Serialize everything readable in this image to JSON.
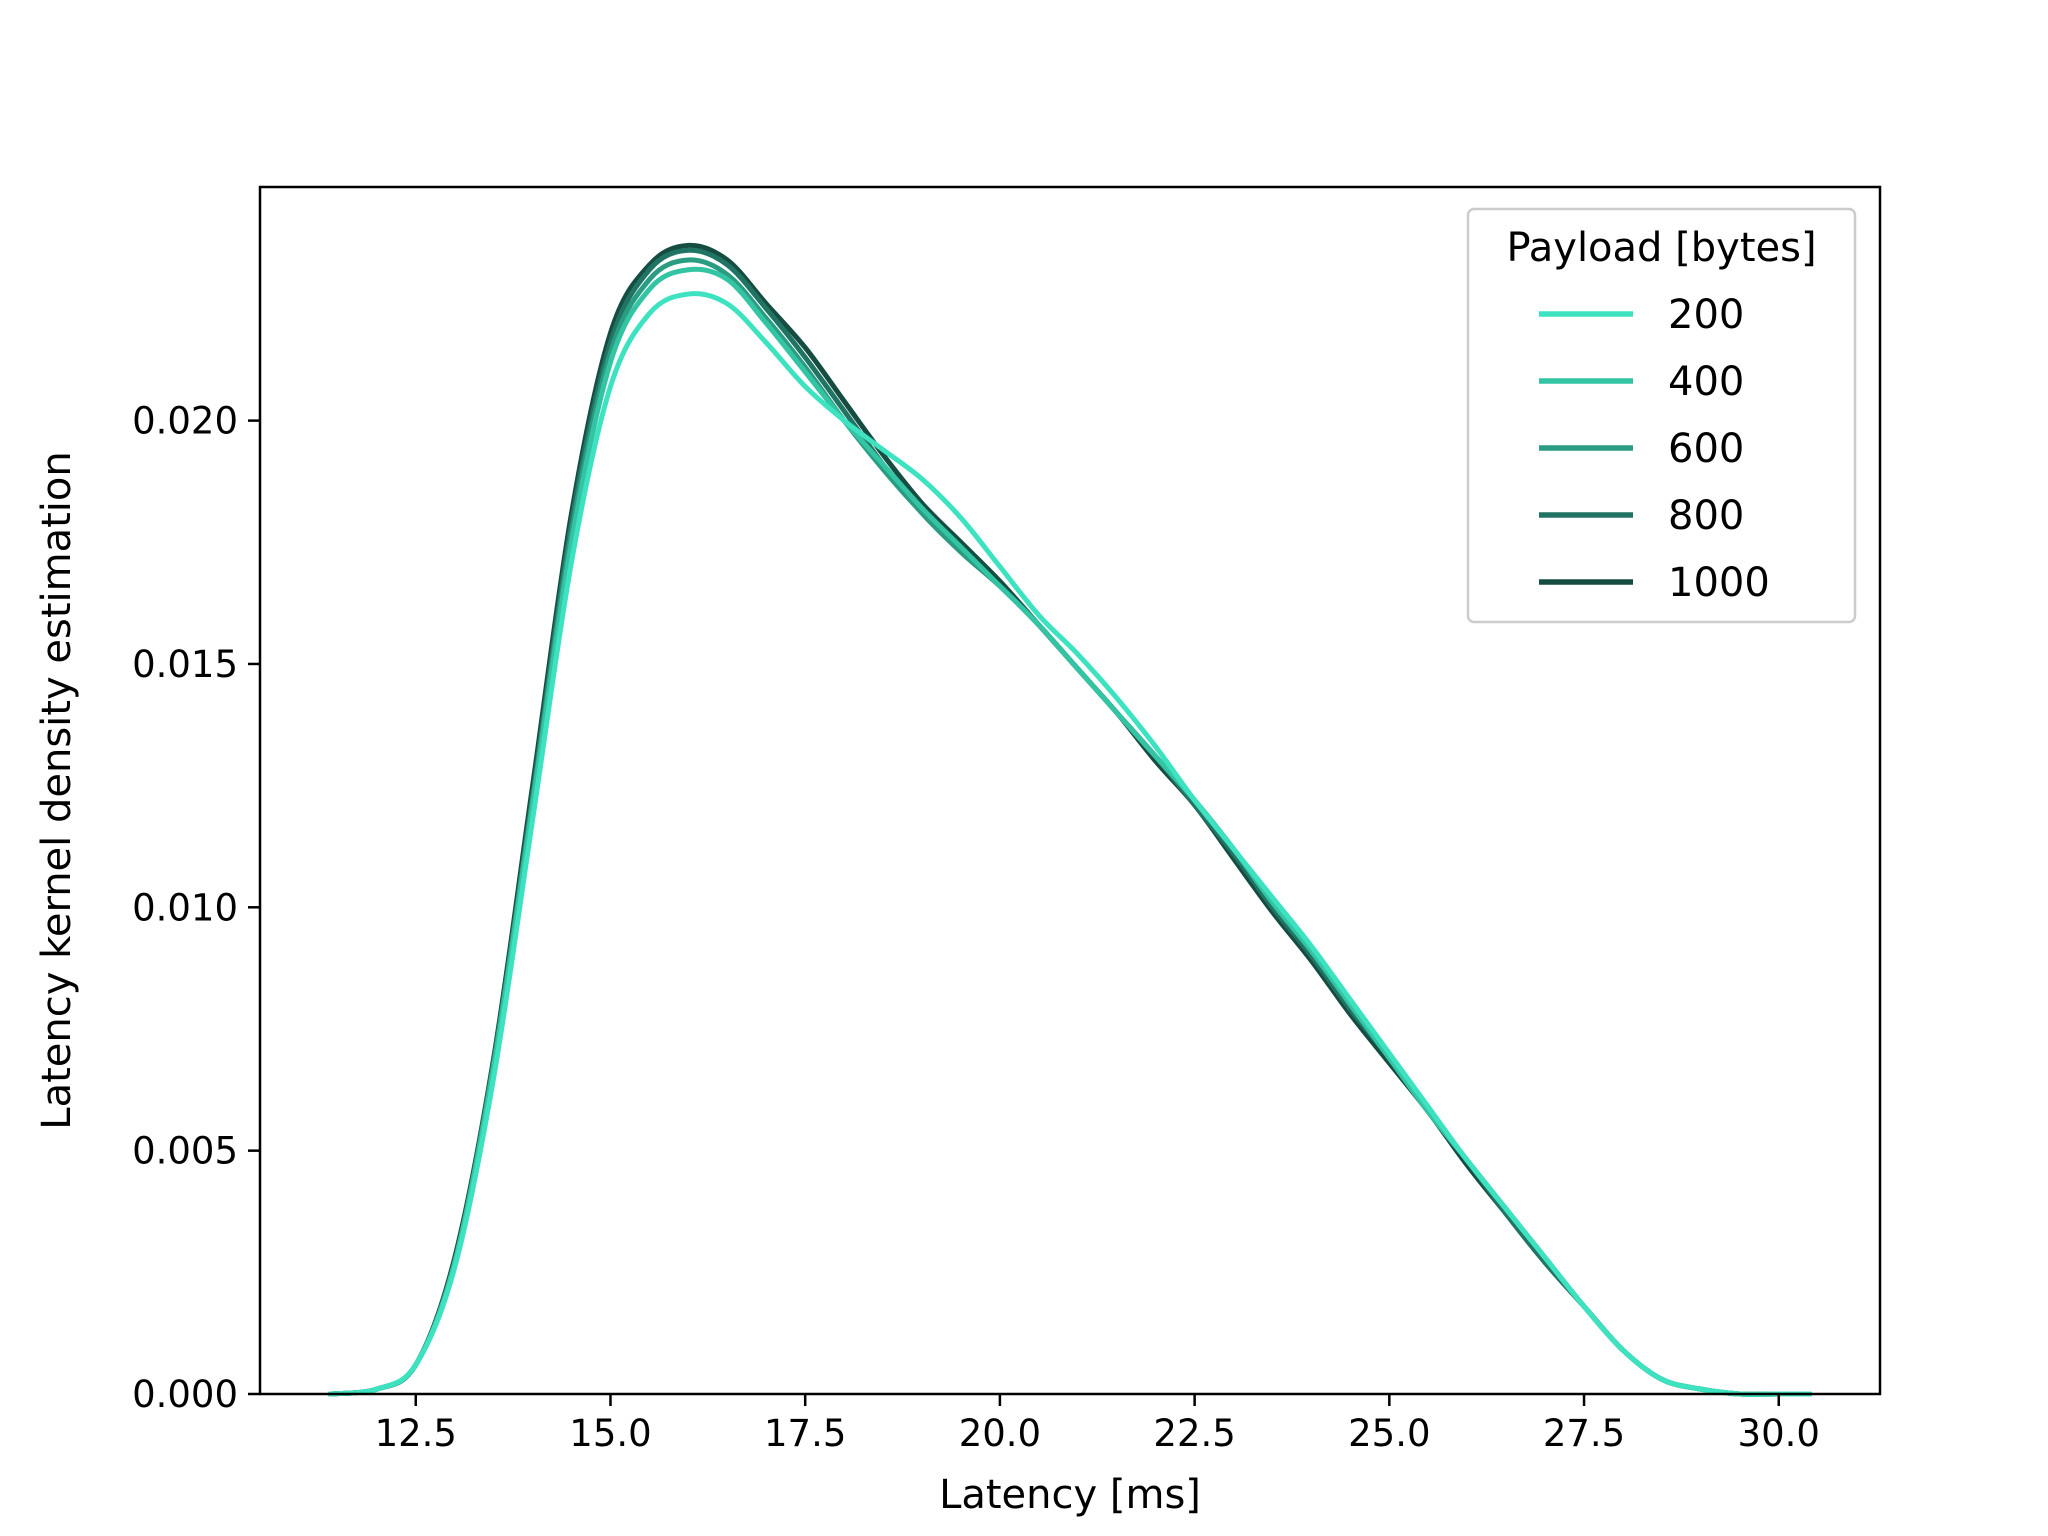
{
  "chart_data": {
    "type": "line",
    "xlabel": "Latency [ms]",
    "ylabel": "Latency kernel density estimation",
    "xlim": [
      10.5,
      31.3
    ],
    "ylim": [
      0.0,
      0.0248
    ],
    "xticks": [
      12.5,
      15.0,
      17.5,
      20.0,
      22.5,
      25.0,
      27.5,
      30.0
    ],
    "xtick_labels": [
      "12.5",
      "15.0",
      "17.5",
      "20.0",
      "22.5",
      "25.0",
      "27.5",
      "30.0"
    ],
    "yticks": [
      0.0,
      0.005,
      0.01,
      0.015,
      0.02
    ],
    "ytick_labels": [
      "0.000",
      "0.005",
      "0.010",
      "0.015",
      "0.020"
    ],
    "grid": false,
    "legend": {
      "title": "Payload [bytes]",
      "placement": "top-right"
    },
    "x": [
      11.4,
      12.0,
      12.5,
      13.0,
      13.5,
      14.0,
      14.5,
      15.0,
      15.5,
      16.0,
      16.5,
      17.0,
      17.5,
      18.0,
      18.5,
      19.0,
      19.5,
      20.0,
      20.5,
      21.0,
      21.5,
      22.0,
      22.5,
      23.0,
      23.5,
      24.0,
      24.5,
      25.0,
      25.5,
      26.0,
      26.5,
      27.0,
      27.5,
      28.0,
      28.5,
      29.0,
      29.5,
      30.0,
      30.4
    ],
    "series": [
      {
        "name": "200",
        "color": "#3de3c0",
        "values": [
          0.0,
          0.0001,
          0.0006,
          0.0026,
          0.0065,
          0.0118,
          0.0171,
          0.0207,
          0.0222,
          0.0226,
          0.0224,
          0.0216,
          0.0207,
          0.02,
          0.0194,
          0.0188,
          0.018,
          0.017,
          0.016,
          0.0152,
          0.0143,
          0.0133,
          0.0122,
          0.0112,
          0.0102,
          0.0092,
          0.0081,
          0.007,
          0.0059,
          0.0048,
          0.0038,
          0.0028,
          0.0018,
          0.0009,
          0.0003,
          0.0001,
          0.0,
          0.0,
          0.0
        ]
      },
      {
        "name": "400",
        "color": "#33c4a4",
        "values": [
          0.0,
          0.0001,
          0.0006,
          0.0027,
          0.0067,
          0.0121,
          0.0175,
          0.0212,
          0.0227,
          0.0231,
          0.0229,
          0.022,
          0.021,
          0.02,
          0.0191,
          0.0182,
          0.0174,
          0.0166,
          0.0158,
          0.0149,
          0.014,
          0.0131,
          0.0122,
          0.0112,
          0.0101,
          0.0091,
          0.008,
          0.0069,
          0.0058,
          0.0048,
          0.0038,
          0.0028,
          0.0018,
          0.0009,
          0.0003,
          0.0001,
          0.0,
          0.0,
          0.0
        ]
      },
      {
        "name": "600",
        "color": "#2a9c82",
        "values": [
          0.0,
          0.0001,
          0.0006,
          0.0027,
          0.0068,
          0.0122,
          0.0177,
          0.0214,
          0.0229,
          0.0233,
          0.023,
          0.0221,
          0.0211,
          0.02,
          0.019,
          0.0181,
          0.0173,
          0.0166,
          0.0158,
          0.0149,
          0.014,
          0.0131,
          0.0122,
          0.0112,
          0.0101,
          0.0091,
          0.008,
          0.0069,
          0.0058,
          0.0048,
          0.0038,
          0.0028,
          0.0018,
          0.0009,
          0.0003,
          0.0001,
          0.0,
          0.0,
          0.0
        ]
      },
      {
        "name": "800",
        "color": "#217463",
        "values": [
          0.0,
          0.0001,
          0.0006,
          0.0027,
          0.0068,
          0.0123,
          0.0179,
          0.0216,
          0.0231,
          0.0235,
          0.0232,
          0.0223,
          0.0213,
          0.0202,
          0.0191,
          0.0181,
          0.0173,
          0.0166,
          0.0158,
          0.0149,
          0.014,
          0.0131,
          0.0121,
          0.0111,
          0.01,
          0.009,
          0.0079,
          0.0069,
          0.0058,
          0.0048,
          0.0037,
          0.0027,
          0.0018,
          0.0009,
          0.0003,
          0.0001,
          0.0,
          0.0,
          0.0
        ]
      },
      {
        "name": "1000",
        "color": "#164d42",
        "values": [
          0.0,
          0.0001,
          0.0006,
          0.0028,
          0.0069,
          0.0125,
          0.0181,
          0.0218,
          0.0232,
          0.0236,
          0.0233,
          0.0224,
          0.0215,
          0.0204,
          0.0193,
          0.0183,
          0.0175,
          0.0167,
          0.0158,
          0.0149,
          0.014,
          0.013,
          0.0121,
          0.011,
          0.0099,
          0.0089,
          0.0078,
          0.0068,
          0.0058,
          0.0047,
          0.0037,
          0.0027,
          0.0018,
          0.0009,
          0.0003,
          0.0001,
          0.0,
          0.0,
          0.0
        ]
      }
    ]
  }
}
